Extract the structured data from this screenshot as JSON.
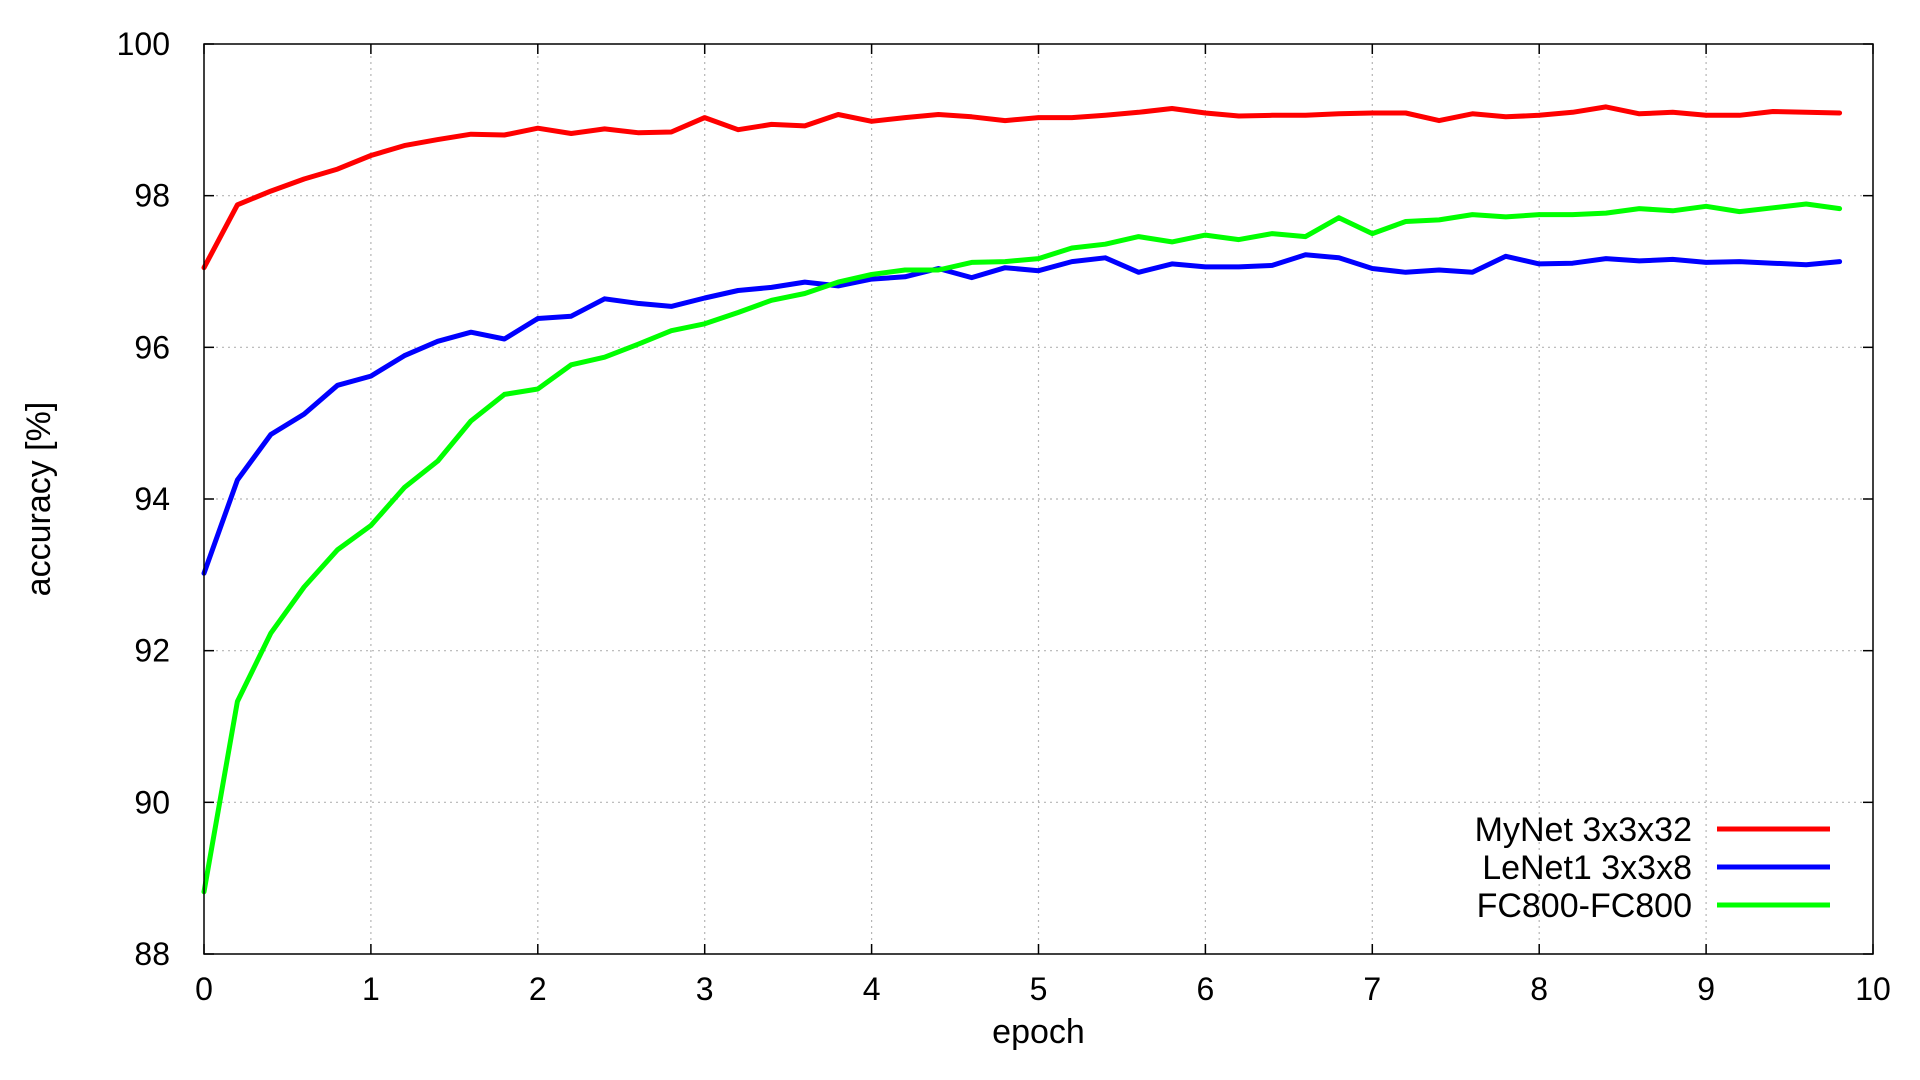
{
  "chart_data": {
    "type": "line",
    "title": "",
    "xlabel": "epoch",
    "ylabel": "accuracy [%]",
    "xlim": [
      0,
      10
    ],
    "ylim": [
      88,
      100
    ],
    "x_ticks": [
      0,
      1,
      2,
      3,
      4,
      5,
      6,
      7,
      8,
      9,
      10
    ],
    "y_ticks": [
      88,
      90,
      92,
      94,
      96,
      98,
      100
    ],
    "grid": true,
    "legend_position": "bottom-right",
    "x": [
      0,
      0.2,
      0.4,
      0.6,
      0.8,
      1.0,
      1.2,
      1.4,
      1.6,
      1.8,
      2.0,
      2.2,
      2.4,
      2.6,
      2.8,
      3.0,
      3.2,
      3.4,
      3.6,
      3.8,
      4.0,
      4.2,
      4.4,
      4.6,
      4.8,
      5.0,
      5.2,
      5.4,
      5.6,
      5.8,
      6.0,
      6.2,
      6.4,
      6.6,
      6.8,
      7.0,
      7.2,
      7.4,
      7.6,
      7.8,
      8.0,
      8.2,
      8.4,
      8.6,
      8.8,
      9.0,
      9.2,
      9.4,
      9.6,
      9.8
    ],
    "series": [
      {
        "name": "MyNet 3x3x32",
        "color": "#ff0000",
        "values": [
          97.05,
          97.88,
          98.06,
          98.22,
          98.35,
          98.53,
          98.66,
          98.74,
          98.81,
          98.8,
          98.89,
          98.82,
          98.88,
          98.83,
          98.84,
          99.03,
          98.87,
          98.94,
          98.92,
          99.07,
          98.98,
          99.03,
          99.07,
          99.04,
          98.99,
          99.03,
          99.03,
          99.06,
          99.1,
          99.15,
          99.09,
          99.05,
          99.06,
          99.06,
          99.08,
          99.09,
          99.09,
          98.99,
          99.08,
          99.04,
          99.06,
          99.1,
          99.17,
          99.08,
          99.1,
          99.06,
          99.06,
          99.11,
          99.1,
          99.09
        ]
      },
      {
        "name": "LeNet1  3x3x8",
        "color": "#0000ff",
        "values": [
          93.02,
          94.25,
          94.85,
          95.12,
          95.5,
          95.62,
          95.89,
          96.08,
          96.2,
          96.11,
          96.38,
          96.41,
          96.64,
          96.58,
          96.54,
          96.65,
          96.75,
          96.79,
          96.86,
          96.81,
          96.9,
          96.93,
          97.04,
          96.92,
          97.05,
          97.01,
          97.13,
          97.18,
          96.99,
          97.1,
          97.06,
          97.06,
          97.08,
          97.22,
          97.18,
          97.04,
          96.99,
          97.02,
          96.99,
          97.2,
          97.1,
          97.11,
          97.17,
          97.14,
          97.16,
          97.12,
          97.13,
          97.11,
          97.09,
          97.13
        ]
      },
      {
        "name": "FC800-FC800",
        "color": "#00ff00",
        "values": [
          88.82,
          91.33,
          92.23,
          92.84,
          93.33,
          93.65,
          94.15,
          94.5,
          95.03,
          95.38,
          95.45,
          95.77,
          95.87,
          96.04,
          96.22,
          96.31,
          96.46,
          96.62,
          96.71,
          96.86,
          96.96,
          97.02,
          97.02,
          97.12,
          97.13,
          97.17,
          97.31,
          97.36,
          97.46,
          97.39,
          97.48,
          97.42,
          97.5,
          97.46,
          97.71,
          97.5,
          97.66,
          97.68,
          97.75,
          97.72,
          97.75,
          97.75,
          97.77,
          97.83,
          97.8,
          97.86,
          97.79,
          97.84,
          97.89,
          97.83
        ]
      }
    ]
  }
}
